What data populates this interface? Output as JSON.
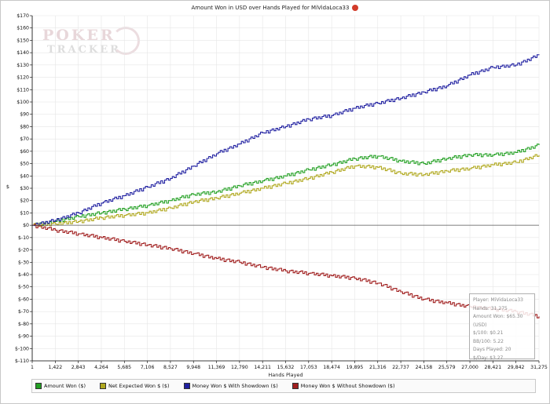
{
  "chart_data": {
    "type": "line",
    "title": "Amount Won in USD over Hands Played for MiVidaLoca33",
    "xlabel": "Hands Played",
    "ylabel": "$",
    "xlim": [
      1,
      31275
    ],
    "ylim": [
      -110,
      170
    ],
    "x_ticks": [
      "1",
      "1,422",
      "2,843",
      "4,264",
      "5,685",
      "7,106",
      "8,527",
      "9,948",
      "11,369",
      "12,790",
      "14,211",
      "15,632",
      "17,053",
      "18,474",
      "19,895",
      "21,316",
      "22,737",
      "24,158",
      "25,579",
      "27,000",
      "28,421",
      "29,842",
      "31,275"
    ],
    "y_ticks": [
      "$170",
      "$160",
      "$150",
      "$140",
      "$130",
      "$120",
      "$110",
      "$100",
      "$90",
      "$80",
      "$70",
      "$60",
      "$50",
      "$40",
      "$30",
      "$20",
      "$10",
      "$0",
      "$-10",
      "$-20",
      "$-30",
      "$-40",
      "$-50",
      "$-60",
      "$-70",
      "$-80",
      "$-90",
      "$-100",
      "$-110"
    ],
    "grid": true,
    "legend_position": "bottom",
    "series": [
      {
        "name": "Amount Won ($)",
        "color": "#23a023",
        "x": [
          1,
          1422,
          2843,
          4264,
          5685,
          7106,
          8527,
          9948,
          11369,
          12790,
          14211,
          15632,
          17053,
          18474,
          19895,
          21316,
          22737,
          24158,
          25579,
          27000,
          28421,
          29842,
          31275
        ],
        "y": [
          0,
          3,
          7,
          10,
          13,
          16,
          20,
          25,
          27,
          32,
          36,
          40,
          45,
          49,
          54,
          56,
          52,
          50,
          54,
          57,
          57,
          59,
          65
        ]
      },
      {
        "name": "Net Expected Won $ ($)",
        "color": "#b0a81e",
        "x": [
          1,
          1422,
          2843,
          4264,
          5685,
          7106,
          8527,
          9948,
          11369,
          12790,
          14211,
          15632,
          17053,
          18474,
          19895,
          21316,
          22737,
          24158,
          25579,
          27000,
          28421,
          29842,
          31275
        ],
        "y": [
          0,
          1,
          3,
          6,
          8,
          10,
          14,
          19,
          22,
          26,
          30,
          34,
          38,
          43,
          48,
          47,
          42,
          41,
          44,
          46,
          49,
          51,
          57
        ]
      },
      {
        "name": "Money Won $ With Showdown ($)",
        "color": "#1f1fa0",
        "x": [
          1,
          1422,
          2843,
          4264,
          5685,
          7106,
          8527,
          9948,
          11369,
          12790,
          14211,
          15632,
          17053,
          18474,
          19895,
          21316,
          22737,
          24158,
          25579,
          27000,
          28421,
          29842,
          31275
        ],
        "y": [
          0,
          4,
          10,
          18,
          24,
          31,
          38,
          48,
          58,
          66,
          75,
          80,
          86,
          89,
          95,
          99,
          103,
          108,
          113,
          122,
          128,
          130,
          138
        ]
      },
      {
        "name": "Money Won $ Without Showdown ($)",
        "color": "#a01e1e",
        "x": [
          1,
          1422,
          2843,
          4264,
          5685,
          7106,
          8527,
          9948,
          11369,
          12790,
          14211,
          15632,
          17053,
          18474,
          19895,
          21316,
          22737,
          24158,
          25579,
          27000,
          28421,
          29842,
          31275
        ],
        "y": [
          0,
          -4,
          -7,
          -10,
          -13,
          -16,
          -19,
          -23,
          -27,
          -30,
          -34,
          -37,
          -39,
          -41,
          -43,
          -47,
          -54,
          -60,
          -63,
          -66,
          -68,
          -70,
          -74
        ]
      }
    ]
  },
  "stats": {
    "player": "Player: MiVidaLoca33",
    "hands": "Hands: 31,275",
    "amount_won": "Amount Won: $65.30 (USD)",
    "per100": "$/100: $0.21",
    "bb100": "BB/100: 5.22",
    "days": "Days Played: 20",
    "per_day": "$/Day: $3.27"
  },
  "watermark": {
    "line1": "POKER",
    "line2": "TRACKER"
  },
  "colors": {
    "axis": "#000000",
    "grid": "#e6e6e6",
    "zero_line": "#555555"
  }
}
